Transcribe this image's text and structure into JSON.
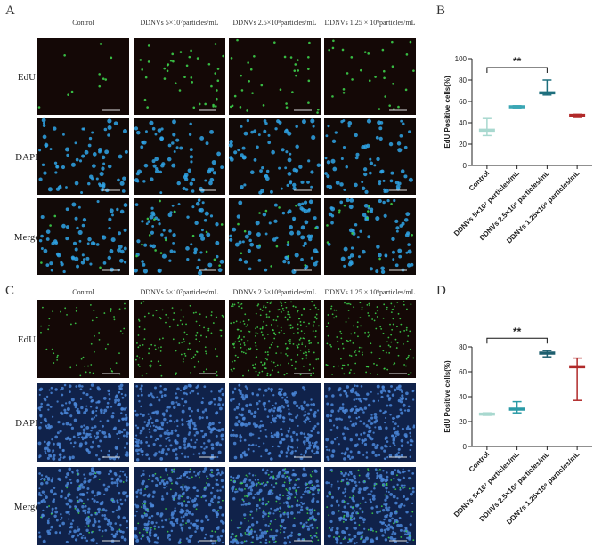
{
  "panels": [
    {
      "label": "A",
      "columns": [
        "Control",
        "DDNVs 5×10⁷particles/mL",
        "DDNVs 2.5×10⁸particles/mL",
        "DDNVs 1.25 × 10⁹particles/mL"
      ],
      "rows": [
        "EdU",
        "DAPI",
        "Merge"
      ]
    },
    {
      "label": "C",
      "columns": [
        "Control",
        "DDNVs 5×10⁷particles/mL",
        "DDNVs 2.5×10⁸particles/mL",
        "DDNVs 1.25 × 10⁹particles/mL"
      ],
      "rows": [
        "EdU",
        "DAPI",
        "Merge"
      ]
    }
  ],
  "chart_data": [
    {
      "type": "errorbar",
      "panel_label": "B",
      "ylabel": "EdU Positive cells(%)",
      "categories": [
        "Control",
        "DDNVs 5×10⁷ particles/mL",
        "DDNVs 2.5×10⁸ particles/mL",
        "DDNVs 1.25×10⁹ particles/mL"
      ],
      "values": [
        33,
        55,
        68,
        47
      ],
      "lower": [
        28,
        54,
        66,
        45
      ],
      "upper": [
        44,
        56,
        80,
        48
      ],
      "colors": [
        "#a8d8cf",
        "#3aa6b4",
        "#1e6f7d",
        "#b22a2a"
      ],
      "ylim": [
        0,
        100
      ],
      "yticks": [
        0,
        20,
        40,
        60,
        80,
        100
      ],
      "annotation": "**"
    },
    {
      "type": "errorbar",
      "panel_label": "D",
      "ylabel": "EdU Positive cells(%)",
      "categories": [
        "Control",
        "DDNVs 5×10⁷ particles/mL",
        "DDNVs 2.5×10⁸ particles/mL",
        "DDNVs 1.25×10⁹ particles/mL"
      ],
      "values": [
        26,
        30,
        75,
        64
      ],
      "lower": [
        25,
        27,
        72,
        37
      ],
      "upper": [
        27,
        36,
        77,
        71
      ],
      "colors": [
        "#a8d8cf",
        "#2a9aa6",
        "#1e5f6f",
        "#b02a2a"
      ],
      "ylim": [
        0,
        80
      ],
      "yticks": [
        0,
        20,
        40,
        60,
        80
      ],
      "annotation": "**"
    }
  ]
}
